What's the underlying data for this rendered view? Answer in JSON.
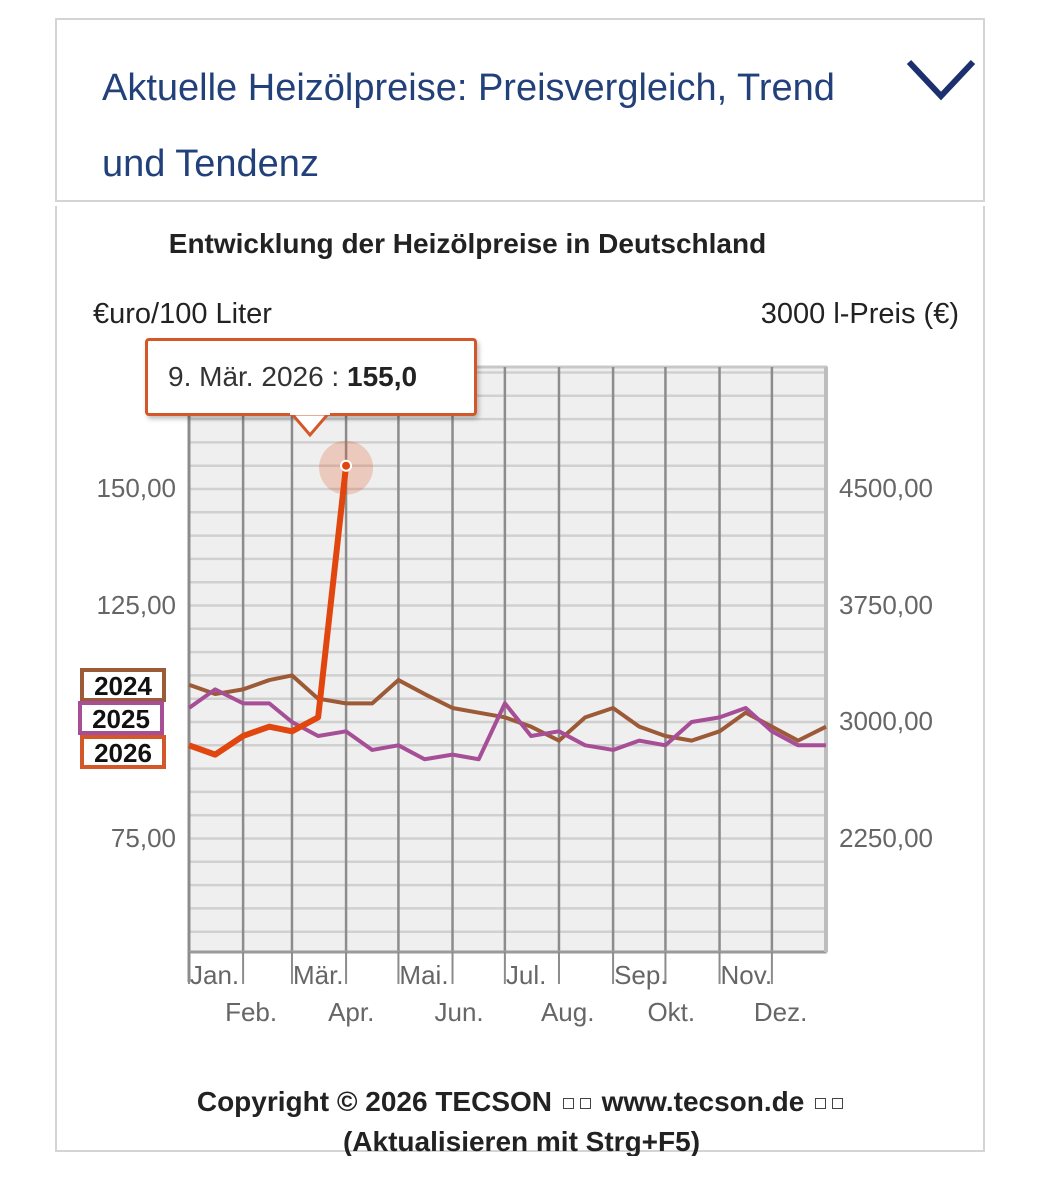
{
  "header": {
    "title": "Aktuelle Heizölpreise:  Preisvergleich, Trend und Tendenz",
    "toggle_icon": "chevron-down-icon",
    "accent_color": "#22407a"
  },
  "chart": {
    "title": "Entwicklung der Heizölpreise in Deutschland",
    "left_axis_unit": "€uro/100 Liter",
    "right_axis_unit": "3000 l-Preis (€)",
    "left_ticks": [
      "150,00",
      "125,00",
      "75,00"
    ],
    "right_ticks": [
      "4500,00",
      "3750,00",
      "3000,00",
      "2250,00"
    ],
    "x_ticks_top": [
      "Jan.",
      "Mär.",
      "Mai.",
      "Jul.",
      "Sep.",
      "Nov."
    ],
    "x_ticks_bottom": [
      "Feb.",
      "Apr.",
      "Jun.",
      "Aug.",
      "Okt.",
      "Dez."
    ],
    "legend": [
      {
        "label": "2024",
        "color": "#9c5a37"
      },
      {
        "label": "2025",
        "color": "#a64f96"
      },
      {
        "label": "2026",
        "color": "#e0460e"
      }
    ],
    "tooltip": {
      "date": "9. Mär. 2026 : ",
      "value": "155,0"
    }
  },
  "footer": {
    "copyright": "Copyright © 2026 TECSON",
    "website": "www.tecson.de",
    "refresh_hint": "(Aktualisieren mit Strg+F5)"
  },
  "chart_data": {
    "type": "line",
    "title": "Entwicklung der Heizölpreise in Deutschland",
    "xlabel": "",
    "ylabel": "€uro/100 Liter",
    "ylabel_right": "3000 l-Preis (€)",
    "ylim": [
      50,
      176
    ],
    "ylim_right": [
      1500,
      5280
    ],
    "y_ticks": [
      75,
      100,
      125,
      150
    ],
    "y_ticks_right": [
      2250,
      3000,
      3750,
      4500
    ],
    "grid": true,
    "categories": [
      "Jan",
      "Feb",
      "Mär",
      "Apr",
      "Mai",
      "Jun",
      "Jul",
      "Aug",
      "Sep",
      "Okt",
      "Nov",
      "Dez"
    ],
    "x_day_of_year": [
      0,
      15,
      31,
      46,
      59,
      74,
      90,
      105,
      120,
      135,
      151,
      166,
      181,
      196,
      212,
      227,
      243,
      258,
      273,
      288,
      304,
      319,
      334,
      349,
      365
    ],
    "series": [
      {
        "name": "2024",
        "color": "#9c5a37",
        "values": [
          108,
          106,
          107,
          109,
          110,
          105,
          104,
          104,
          109,
          106,
          103,
          102,
          101,
          99,
          96,
          101,
          103,
          99,
          97,
          96,
          98,
          102,
          99,
          96,
          99
        ]
      },
      {
        "name": "2025",
        "color": "#a64f96",
        "values": [
          103,
          107,
          104,
          104,
          100,
          97,
          98,
          94,
          95,
          92,
          93,
          92,
          104,
          97,
          98,
          95,
          94,
          96,
          95,
          100,
          101,
          103,
          98,
          95,
          95
        ]
      },
      {
        "name": "2026",
        "color": "#e0460e",
        "values": [
          95,
          93,
          97,
          99,
          98,
          101,
          155
        ]
      }
    ],
    "annotations": [
      {
        "x": "9. Mär. 2026",
        "y": 155.0,
        "text": "9. Mär. 2026 : 155,0"
      }
    ],
    "legend_position": "left"
  }
}
